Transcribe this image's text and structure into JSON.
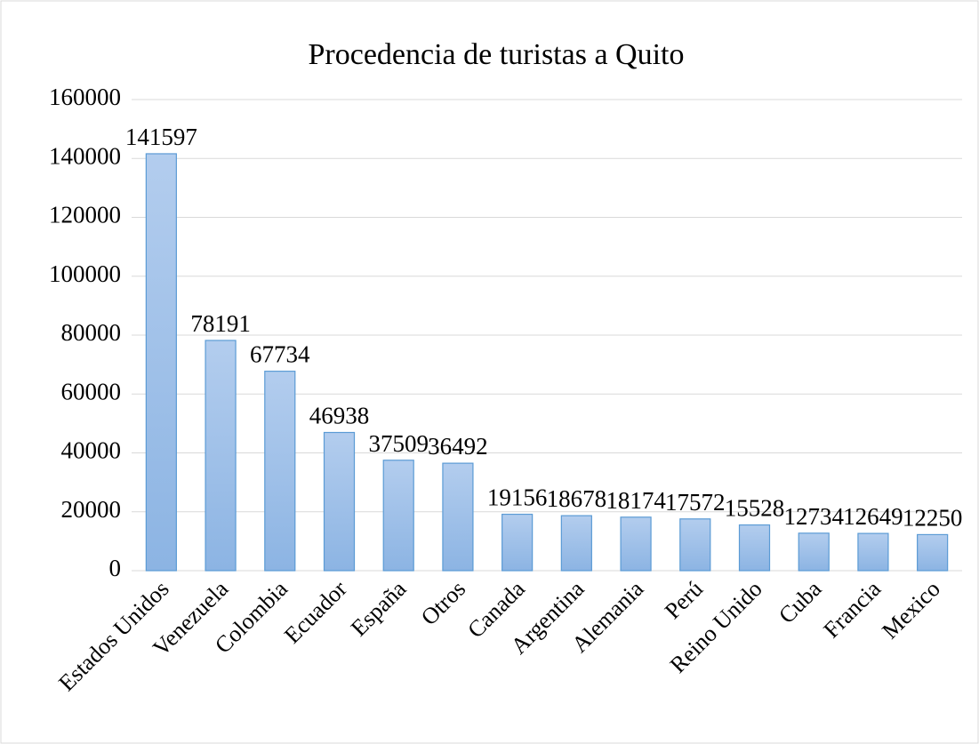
{
  "chart_data": {
    "type": "bar",
    "title": "Procedencia de turistas a Quito",
    "categories": [
      "Estados Unidos",
      "Venezuela",
      "Colombia",
      "Ecuador",
      "España",
      "Otros",
      "Canada",
      "Argentina",
      "Alemania",
      "Perú",
      "Reino Unido",
      "Cuba",
      "Francia",
      "Mexico"
    ],
    "values": [
      141597,
      78191,
      67734,
      46938,
      37509,
      36492,
      19156,
      18678,
      18174,
      17572,
      15528,
      12734,
      12649,
      12250
    ],
    "color": "#5b9bd5",
    "ylim": [
      0,
      160000
    ],
    "yticks": [
      0,
      20000,
      40000,
      60000,
      80000,
      100000,
      120000,
      140000,
      160000
    ],
    "grid": true
  }
}
